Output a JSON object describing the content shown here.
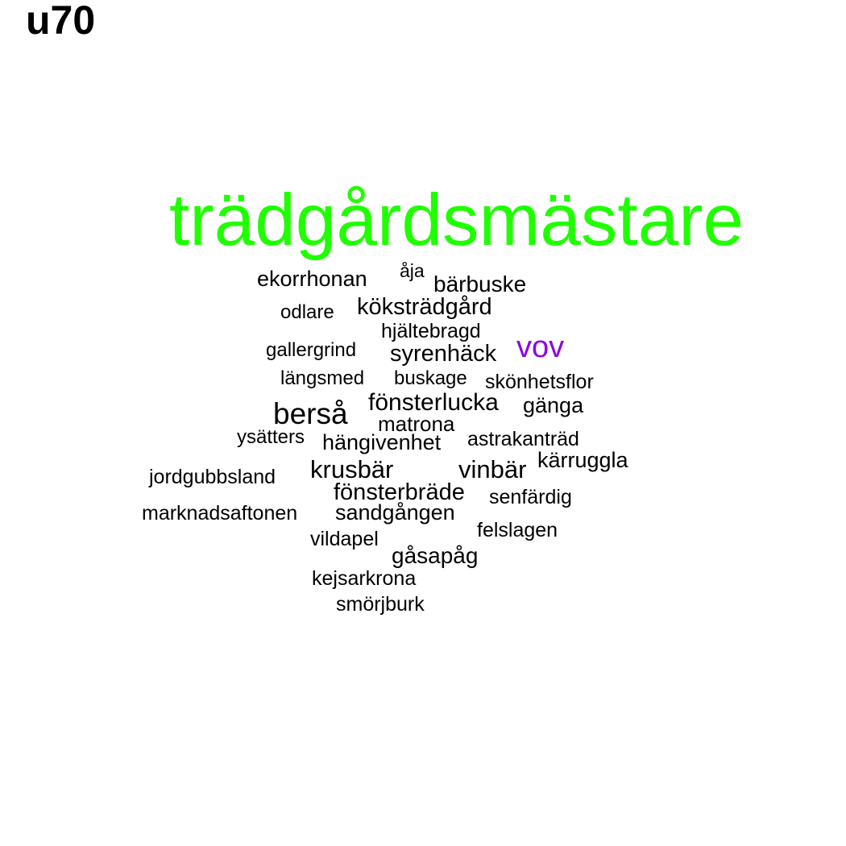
{
  "title": "u70",
  "colors": {
    "default_word": "#000000",
    "highlight_primary": "#1fff00",
    "highlight_secondary": "#8a00e6",
    "background": "#ffffff"
  },
  "words": [
    {
      "text": "trädgårdsmästare",
      "color": "#1fff00"
    },
    {
      "text": "ekorrhonan"
    },
    {
      "text": "åja"
    },
    {
      "text": "bärbuske"
    },
    {
      "text": "odlare"
    },
    {
      "text": "köksträdgård"
    },
    {
      "text": "hjältebragd"
    },
    {
      "text": "gallergrind"
    },
    {
      "text": "syrenhäck"
    },
    {
      "text": "vov",
      "color": "#8a00e6"
    },
    {
      "text": "längsmed"
    },
    {
      "text": "buskage"
    },
    {
      "text": "skönhetsflor"
    },
    {
      "text": "berså"
    },
    {
      "text": "fönsterlucka"
    },
    {
      "text": "gänga"
    },
    {
      "text": "matrona"
    },
    {
      "text": "ysätters"
    },
    {
      "text": "hängivenhet"
    },
    {
      "text": "astrakanträd"
    },
    {
      "text": "krusbär"
    },
    {
      "text": "vinbär"
    },
    {
      "text": "kärruggla"
    },
    {
      "text": "jordgubbsland"
    },
    {
      "text": "fönsterbräde"
    },
    {
      "text": "senfärdig"
    },
    {
      "text": "marknadsaftonen"
    },
    {
      "text": "sandgången"
    },
    {
      "text": "felslagen"
    },
    {
      "text": "vildapel"
    },
    {
      "text": "gåsapåg"
    },
    {
      "text": "kejsarkrona"
    },
    {
      "text": "smörjburk"
    }
  ]
}
